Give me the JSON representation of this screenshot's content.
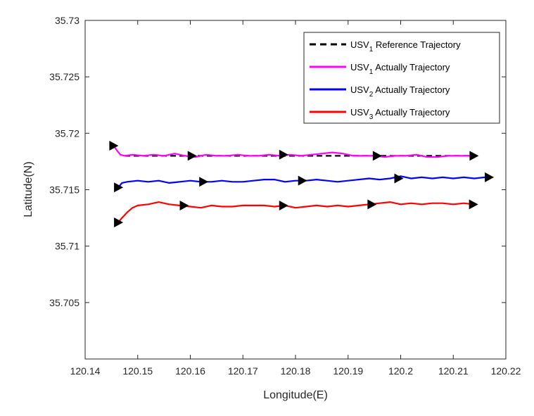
{
  "chart_data": {
    "type": "line",
    "xlabel": "Longitude(E)",
    "ylabel": "Latitude(N)",
    "xlim": [
      120.14,
      120.22
    ],
    "ylim": [
      35.7,
      35.73
    ],
    "xticks": [
      "120.14",
      "120.15",
      "120.16",
      "120.17",
      "120.18",
      "120.19",
      "120.2",
      "120.21",
      "120.22"
    ],
    "yticks": [
      "35.705",
      "35.71",
      "35.715",
      "35.72",
      "35.725",
      "35.73"
    ],
    "grid": false,
    "legend_position": "top-right",
    "series": [
      {
        "legend": {
          "main": "USV",
          "sub": "1",
          "rest": " Reference Trajectory"
        },
        "color": "#000000",
        "style": "dashed",
        "x": [
          120.1475,
          120.214
        ],
        "y": [
          35.718,
          35.718
        ],
        "markers": []
      },
      {
        "legend": {
          "main": "USV",
          "sub": "1",
          "rest": " Actually Trajectory"
        },
        "color": "#ff00ff",
        "style": "solid",
        "x": [
          120.1454,
          120.146,
          120.1467,
          120.1475,
          120.149,
          120.151,
          120.153,
          120.155,
          120.157,
          120.159,
          120.161,
          120.163,
          120.165,
          120.167,
          120.169,
          120.171,
          120.173,
          120.175,
          120.177,
          120.179,
          120.181,
          120.183,
          120.185,
          120.187,
          120.189,
          120.191,
          120.193,
          120.195,
          120.197,
          120.199,
          120.201,
          120.203,
          120.205,
          120.207,
          120.209,
          120.211,
          120.213,
          120.214
        ],
        "y": [
          35.7189,
          35.7185,
          35.7181,
          35.718,
          35.7181,
          35.718,
          35.7181,
          35.718,
          35.7182,
          35.718,
          35.7179,
          35.7181,
          35.718,
          35.718,
          35.7181,
          35.718,
          35.718,
          35.7181,
          35.718,
          35.7181,
          35.718,
          35.7181,
          35.7182,
          35.7183,
          35.7182,
          35.718,
          35.718,
          35.718,
          35.7179,
          35.718,
          35.718,
          35.7181,
          35.7179,
          35.7179,
          35.718,
          35.718,
          35.718,
          35.718
        ],
        "markers": [
          [
            120.1454,
            35.7189
          ],
          [
            120.1603,
            35.718
          ],
          [
            120.1777,
            35.7181
          ],
          [
            120.1955,
            35.718
          ],
          [
            120.2139,
            35.718
          ]
        ]
      },
      {
        "legend": {
          "main": "USV",
          "sub": "2",
          "rest": " Actually Trajectory"
        },
        "color": "#0000ff",
        "style": "solid",
        "x": [
          120.1463,
          120.147,
          120.148,
          120.15,
          120.152,
          120.154,
          120.156,
          120.158,
          120.16,
          120.162,
          120.164,
          120.166,
          120.168,
          120.17,
          120.172,
          120.174,
          120.176,
          120.178,
          120.18,
          120.182,
          120.184,
          120.186,
          120.188,
          120.19,
          120.192,
          120.194,
          120.196,
          120.198,
          120.2,
          120.202,
          120.204,
          120.206,
          120.208,
          120.21,
          120.212,
          120.214,
          120.216,
          120.2168
        ],
        "y": [
          35.7152,
          35.7156,
          35.7157,
          35.7158,
          35.7157,
          35.7158,
          35.7156,
          35.7157,
          35.7158,
          35.7157,
          35.7157,
          35.7158,
          35.7157,
          35.7157,
          35.7158,
          35.7159,
          35.7159,
          35.7157,
          35.7158,
          35.7158,
          35.7159,
          35.7158,
          35.7157,
          35.7158,
          35.7159,
          35.716,
          35.7159,
          35.716,
          35.7162,
          35.716,
          35.7161,
          35.716,
          35.7161,
          35.716,
          35.7161,
          35.716,
          35.7161,
          35.7161
        ],
        "markers": [
          [
            120.1463,
            35.7152
          ],
          [
            120.1625,
            35.7157
          ],
          [
            120.1813,
            35.7158
          ],
          [
            120.1996,
            35.716
          ],
          [
            120.2168,
            35.7161
          ]
        ]
      },
      {
        "legend": {
          "main": "USV",
          "sub": "3",
          "rest": " Actually Trajectory"
        },
        "color": "#ff0000",
        "style": "solid",
        "x": [
          120.1463,
          120.147,
          120.148,
          120.149,
          120.15,
          120.152,
          120.154,
          120.156,
          120.158,
          120.16,
          120.162,
          120.164,
          120.166,
          120.168,
          120.17,
          120.172,
          120.174,
          120.176,
          120.178,
          120.18,
          120.182,
          120.184,
          120.186,
          120.188,
          120.19,
          120.192,
          120.194,
          120.196,
          120.198,
          120.2,
          120.202,
          120.204,
          120.206,
          120.208,
          120.21,
          120.212,
          120.2138
        ],
        "y": [
          35.7121,
          35.7125,
          35.713,
          35.7134,
          35.7136,
          35.7137,
          35.7139,
          35.7137,
          35.7136,
          35.7135,
          35.7134,
          35.7136,
          35.7135,
          35.7135,
          35.7136,
          35.7136,
          35.7136,
          35.7135,
          35.7136,
          35.7134,
          35.7135,
          35.7136,
          35.7135,
          35.7136,
          35.7135,
          35.7136,
          35.7137,
          35.7138,
          35.7139,
          35.7137,
          35.7138,
          35.7137,
          35.7138,
          35.7138,
          35.7137,
          35.7138,
          35.7137
        ],
        "markers": [
          [
            120.1463,
            35.7121
          ],
          [
            120.1588,
            35.7136
          ],
          [
            120.1777,
            35.7136
          ],
          [
            120.1945,
            35.7137
          ],
          [
            120.2138,
            35.7137
          ]
        ]
      }
    ]
  }
}
